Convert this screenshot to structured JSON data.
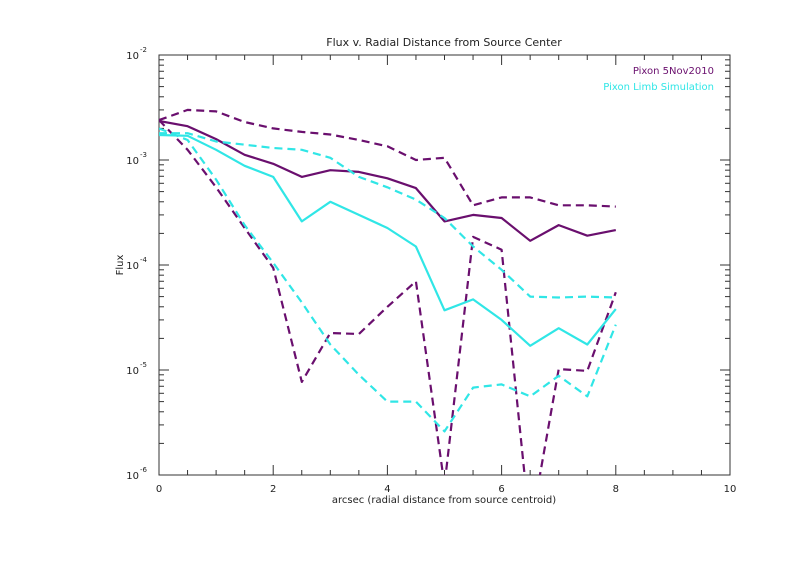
{
  "chart_data": {
    "type": "line",
    "title": "Flux v. Radial Distance from Source Center",
    "xlabel": "arcsec (radial distance from source centroid)",
    "ylabel": "Flux",
    "xlim": [
      0,
      10
    ],
    "ylim": [
      1e-06,
      0.01
    ],
    "yscale": "log",
    "xticks": [
      "0",
      "2",
      "4",
      "6",
      "8",
      "10"
    ],
    "yticks": [
      {
        "base": "10",
        "exp": "-2"
      },
      {
        "base": "10",
        "exp": "-3"
      },
      {
        "base": "10",
        "exp": "-4"
      },
      {
        "base": "10",
        "exp": "-5"
      },
      {
        "base": "10",
        "exp": "-6"
      }
    ],
    "legend": {
      "placement": "top-right",
      "entries": [
        {
          "label": "Pixon 5Nov2010",
          "color": "#6a0f6e"
        },
        {
          "label": "Pixon Limb Simulation",
          "color": "#30e6e6"
        }
      ]
    },
    "x": [
      0,
      0.5,
      1,
      1.5,
      2,
      2.5,
      3,
      3.5,
      4,
      4.5,
      5,
      5.5,
      6,
      6.5,
      7,
      7.5,
      8
    ],
    "series": [
      {
        "name": "Pixon 5Nov2010",
        "style": "solid",
        "color": "#6a0f6e",
        "values": [
          0.00235,
          0.0021,
          0.00158,
          0.00112,
          0.00092,
          0.00069,
          0.0008,
          0.00077,
          0.00067,
          0.00054,
          0.00026,
          0.0003,
          0.00028,
          0.00017,
          0.00024,
          0.00019,
          0.000215
        ]
      },
      {
        "name": "Pixon 5Nov2010 upper bound",
        "style": "dashed",
        "color": "#6a0f6e",
        "values": [
          0.0024,
          0.003,
          0.0029,
          0.0023,
          0.002,
          0.00185,
          0.00175,
          0.00155,
          0.00135,
          0.001,
          0.00105,
          0.00037,
          0.00044,
          0.00044,
          0.00037,
          0.00037,
          0.00036
        ]
      },
      {
        "name": "Pixon 5Nov2010 lower bound",
        "style": "dashed",
        "color": "#6a0f6e",
        "values": [
          0.0024,
          0.00125,
          0.00055,
          0.000225,
          9.4e-05,
          7.7e-06,
          2.25e-05,
          2.2e-05,
          4e-05,
          7e-05,
          8e-07,
          0.000185,
          0.00014,
          3e-07,
          1.02e-05,
          9.8e-06,
          5.5e-05
        ]
      },
      {
        "name": "Pixon Limb Simulation",
        "style": "solid",
        "color": "#30e6e6",
        "values": [
          0.00173,
          0.0017,
          0.00125,
          0.00088,
          0.00069,
          0.00026,
          0.0004,
          0.0003,
          0.000225,
          0.00015,
          3.7e-05,
          4.7e-05,
          3e-05,
          1.7e-05,
          2.5e-05,
          1.75e-05,
          3.8e-05
        ]
      },
      {
        "name": "Pixon Limb Simulation upper bound",
        "style": "dashed",
        "color": "#30e6e6",
        "values": [
          0.0018,
          0.0018,
          0.0015,
          0.0014,
          0.0013,
          0.00125,
          0.00105,
          0.00069,
          0.00055,
          0.00042,
          0.00028,
          0.00015,
          9e-05,
          5e-05,
          4.9e-05,
          5e-05,
          4.9e-05
        ]
      },
      {
        "name": "Pixon Limb Simulation lower bound",
        "style": "dashed",
        "color": "#30e6e6",
        "values": [
          0.002,
          0.00155,
          0.00065,
          0.00024,
          0.000105,
          4.4e-05,
          1.75e-05,
          9e-06,
          5e-06,
          5e-06,
          2.6e-06,
          6.8e-06,
          7.3e-06,
          5.6e-06,
          8.8e-06,
          5.6e-06,
          2.7e-05
        ]
      }
    ],
    "grid": false
  }
}
